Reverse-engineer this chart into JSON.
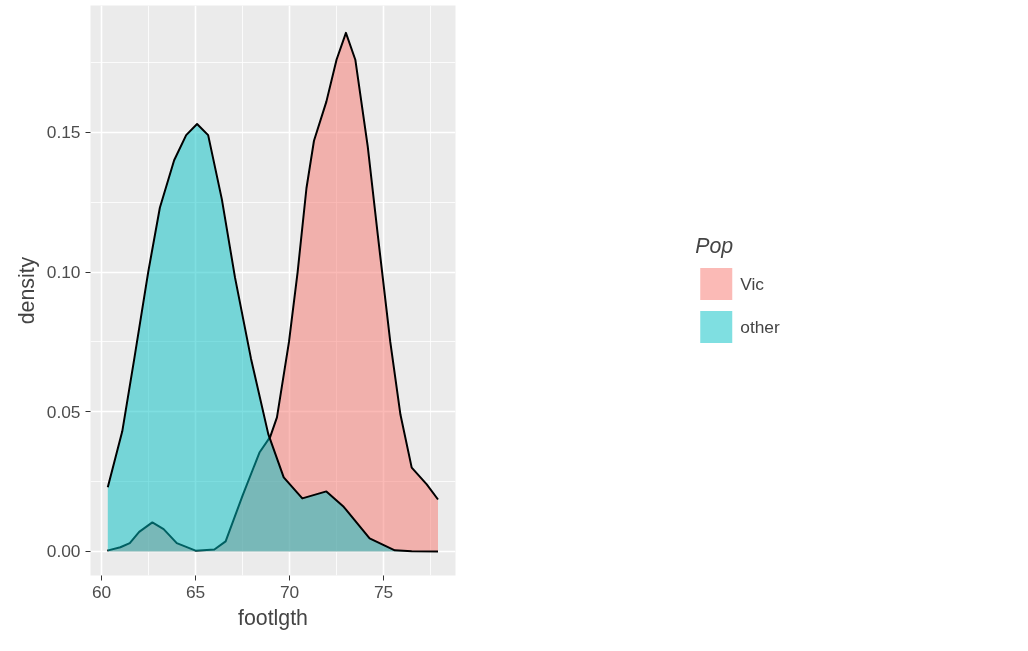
{
  "chart_data": {
    "type": "area",
    "xlabel": "footlgth",
    "ylabel": "density",
    "legend_title": "Pop",
    "legend": "right",
    "grid": true,
    "xlim": [
      59.41,
      78.83
    ],
    "ylim": [
      -0.0086,
      0.1954
    ],
    "xticks": [
      60,
      65,
      70,
      75
    ],
    "yticks": [
      {
        "value": 0,
        "label": "0.00"
      },
      {
        "value": 0.05,
        "label": "0.05"
      },
      {
        "value": 0.1,
        "label": "0.10"
      },
      {
        "value": 0.15,
        "label": "0.15"
      }
    ],
    "series": [
      {
        "name": "Vic",
        "color": "#f8766d",
        "x": [
          60.3,
          61.0,
          61.5,
          62.0,
          62.7,
          63.3,
          64.0,
          65.0,
          66.0,
          66.6,
          67.5,
          68.4,
          68.97,
          69.33,
          69.97,
          70.43,
          70.9,
          71.3,
          71.96,
          72.5,
          73.0,
          73.5,
          74.16,
          74.7,
          75.36,
          75.9,
          76.5,
          77.3,
          77.9
        ],
        "values": [
          0.0003,
          0.0015,
          0.003,
          0.007,
          0.0104,
          0.008,
          0.003,
          0.0003,
          0.0007,
          0.0036,
          0.02,
          0.0354,
          0.041,
          0.048,
          0.075,
          0.1,
          0.13,
          0.147,
          0.161,
          0.176,
          0.1856,
          0.176,
          0.145,
          0.113,
          0.075,
          0.049,
          0.03,
          0.024,
          0.0186
        ]
      },
      {
        "name": "other",
        "color": "#00bfc4",
        "x": [
          60.33,
          61.1,
          61.74,
          62.48,
          63.1,
          63.86,
          64.5,
          65.08,
          65.67,
          66.4,
          67.1,
          67.95,
          68.87,
          69.69,
          70.68,
          71.96,
          72.88,
          74.26,
          75.6,
          76.5,
          77.9
        ],
        "values": [
          0.023,
          0.043,
          0.069,
          0.1,
          0.123,
          0.14,
          0.149,
          0.153,
          0.149,
          0.126,
          0.098,
          0.069,
          0.042,
          0.0265,
          0.019,
          0.0215,
          0.016,
          0.0047,
          0.0004,
          0.0001,
          0.0
        ]
      }
    ]
  }
}
